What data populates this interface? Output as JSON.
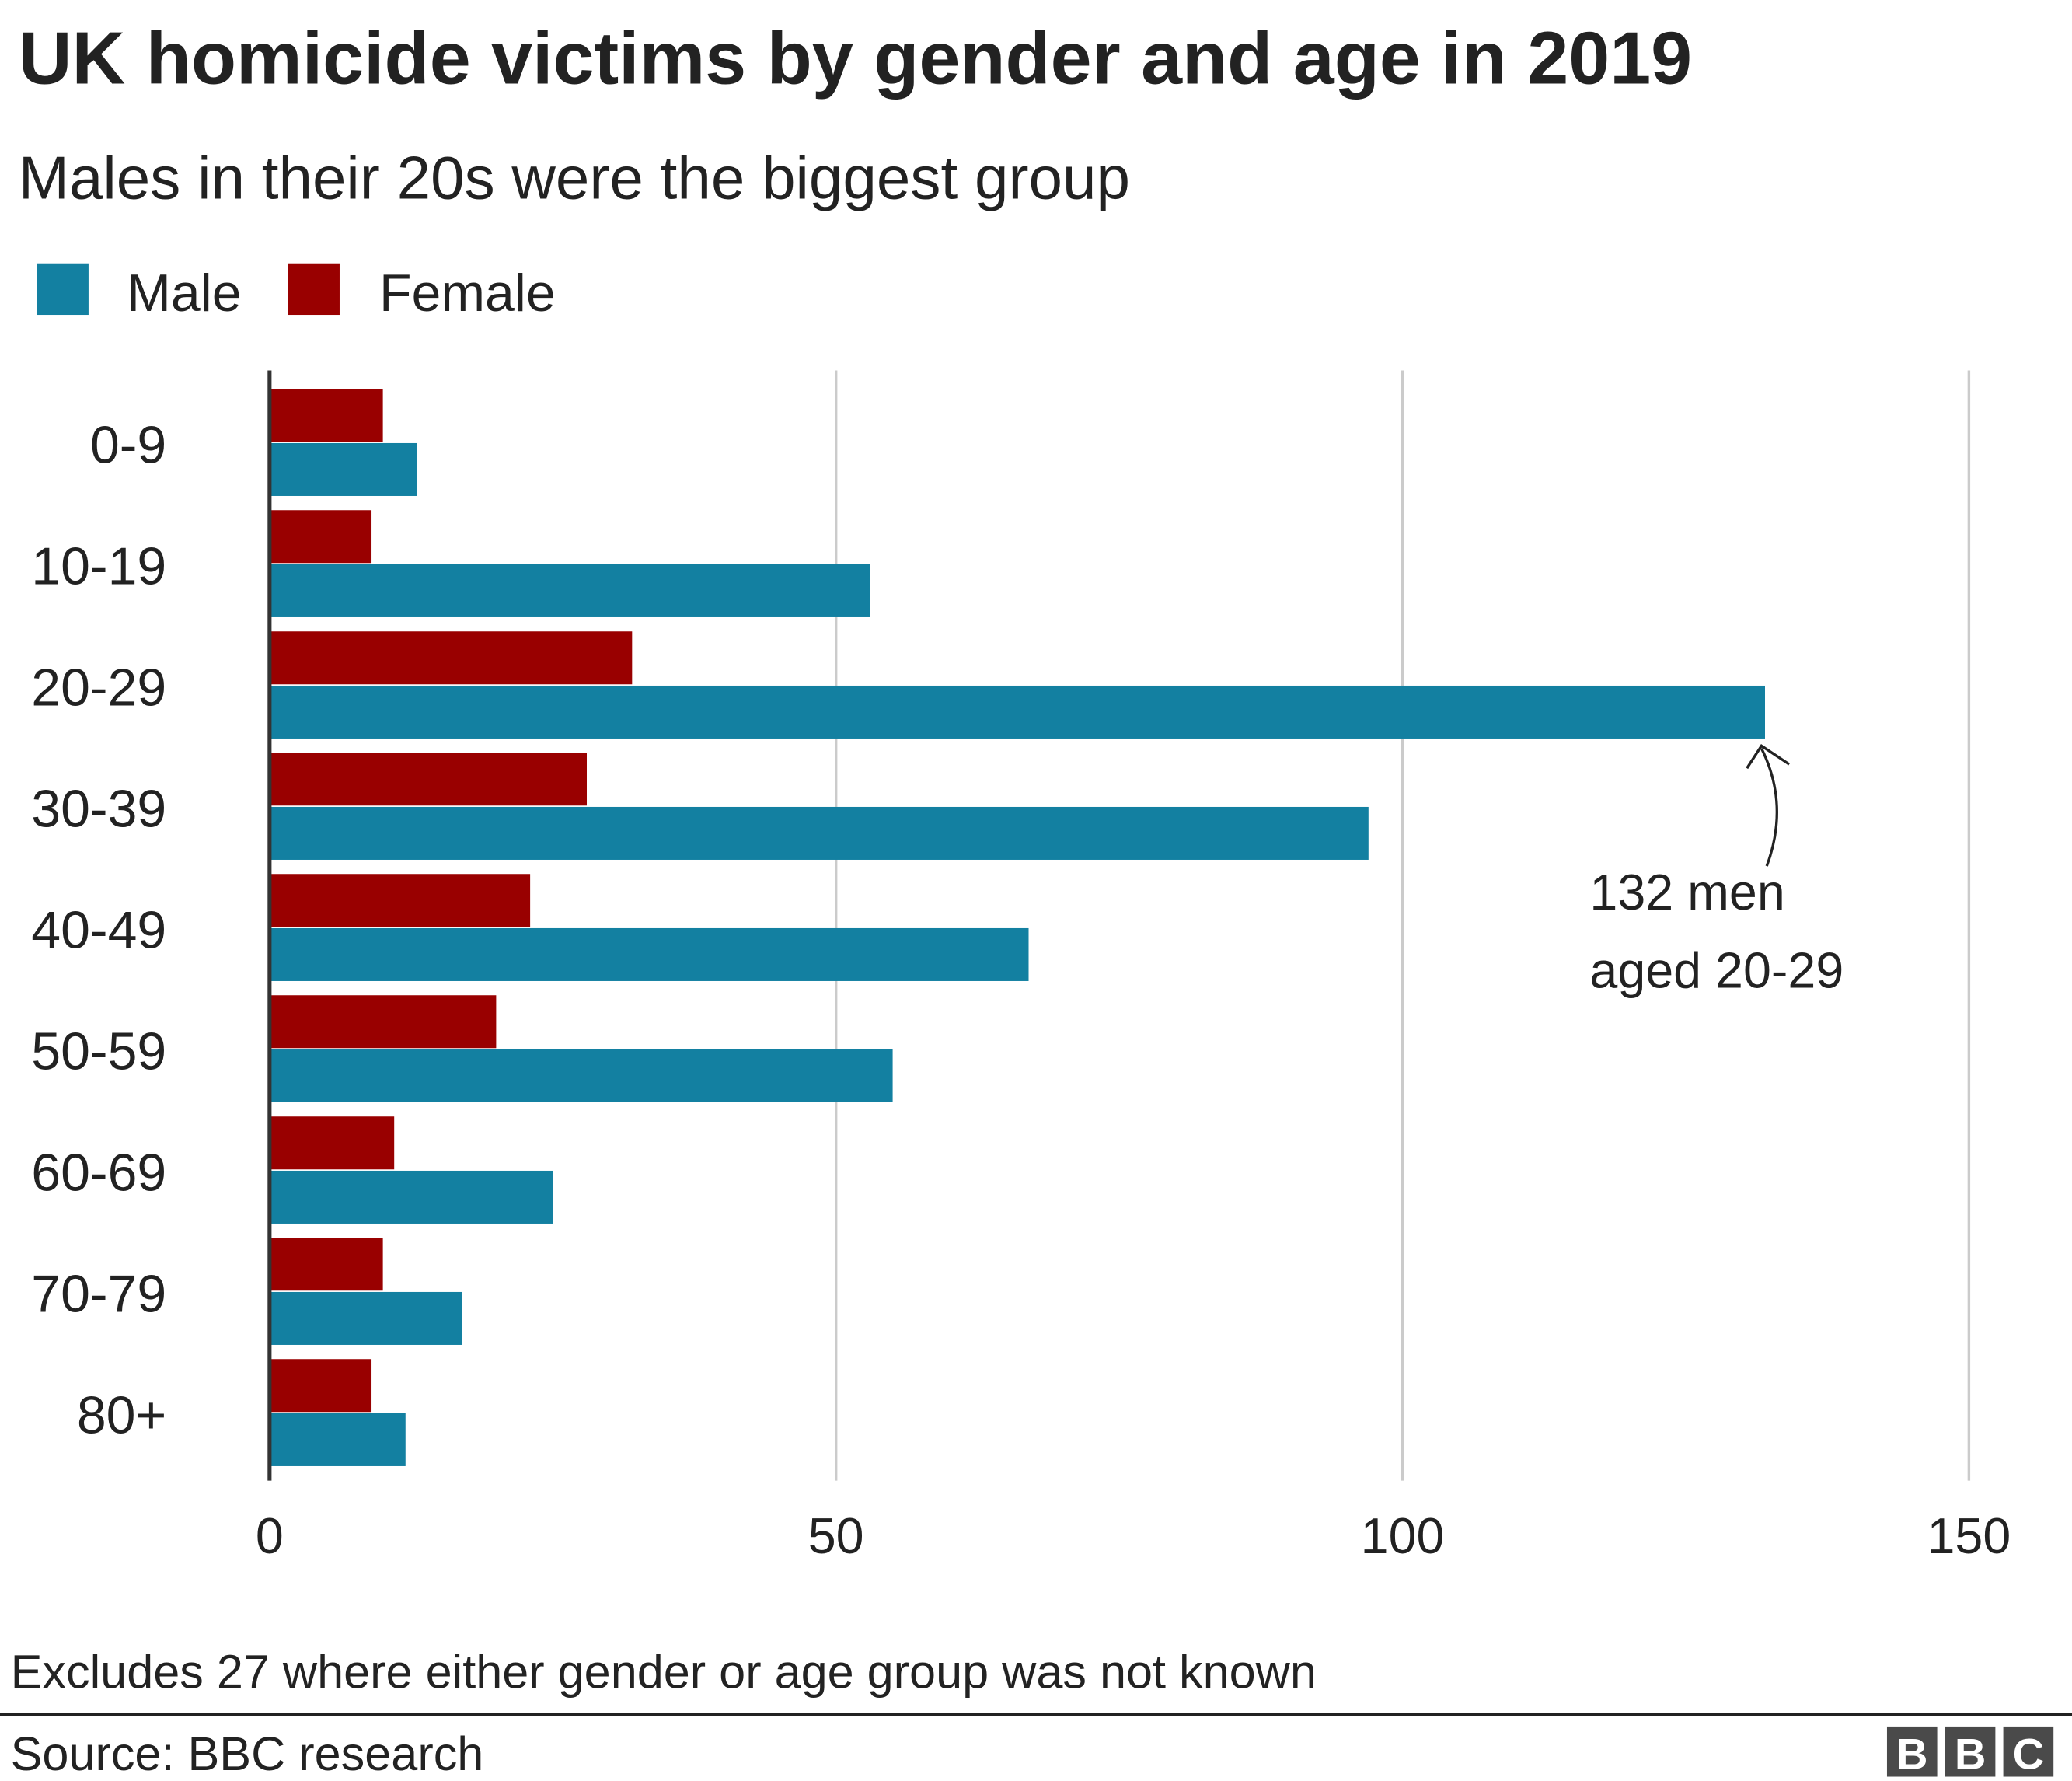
{
  "chart_data": {
    "type": "bar",
    "orientation": "horizontal",
    "title": "UK homicide victims by gender and age in 2019",
    "subtitle": "Males in their 20s were the biggest group",
    "categories": [
      "0-9",
      "10-19",
      "20-29",
      "30-39",
      "40-49",
      "50-59",
      "60-69",
      "70-79",
      "80+"
    ],
    "series": [
      {
        "name": "Female",
        "color": "#990000",
        "values": [
          10,
          9,
          32,
          28,
          23,
          20,
          11,
          10,
          9
        ]
      },
      {
        "name": "Male",
        "color": "#1380A1",
        "values": [
          13,
          53,
          132,
          97,
          67,
          55,
          25,
          17,
          12
        ]
      }
    ],
    "legend_order": [
      "Male",
      "Female"
    ],
    "legend": {
      "male": "Male",
      "female": "Female",
      "placement": "top-left"
    },
    "xlim": [
      0,
      150
    ],
    "xticks": [
      "0",
      "50",
      "100",
      "150"
    ],
    "xtick_values": [
      0,
      50,
      100,
      150
    ],
    "grid": true,
    "annotation": {
      "line1": "132 men",
      "line2": "aged 20-29"
    },
    "note": "Excludes 27 where either gender or age group was not known",
    "source": "Source: BBC research",
    "logo": "BBC"
  }
}
